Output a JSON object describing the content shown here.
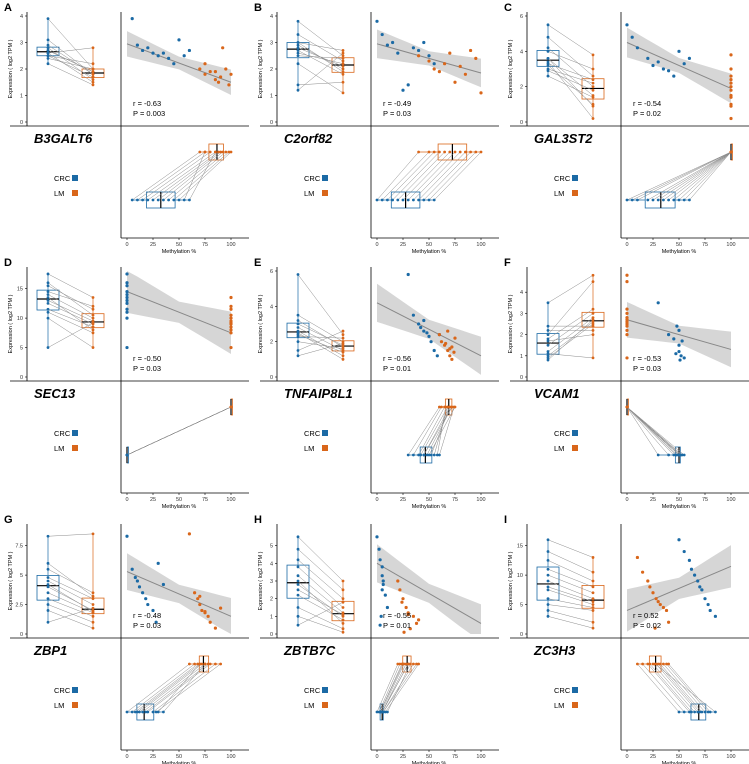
{
  "figure": {
    "groups": [
      "CRC",
      "LM"
    ],
    "colors": {
      "CRC": "#1b6aa5",
      "LM": "#d9661a",
      "line": "#8c8c8c",
      "band": "#d6d6d6"
    },
    "methylation_label": "Methylation %",
    "methylation_ticks": [
      "0",
      "25",
      "50",
      "75",
      "100"
    ]
  },
  "chart_data": [
    {
      "panel": "A",
      "gene": "B3GALT6",
      "type": "scatter",
      "expression_ylabel": "Expression ( log2 TPM )",
      "ylim": [
        0,
        4
      ],
      "yticks": [
        0,
        1,
        2,
        3,
        4
      ],
      "r_text": "r = -0.63",
      "p_text": "P = 0.003",
      "lm_start": 2.95,
      "lm_end": 1.5,
      "lm_ci": 0.4,
      "crc_methylation": [
        5,
        10,
        15,
        20,
        25,
        30,
        35,
        40,
        45,
        50,
        55,
        60
      ],
      "lm_methylation": [
        70,
        75,
        80,
        85,
        88,
        90,
        92,
        95,
        98,
        100,
        75,
        85
      ],
      "crc_expression": [
        3.9,
        2.9,
        2.7,
        2.8,
        2.6,
        2.5,
        2.6,
        2.4,
        2.2,
        3.1,
        2.5,
        2.7
      ],
      "lm_expression": [
        2.0,
        1.8,
        1.9,
        1.6,
        1.5,
        1.7,
        2.8,
        2.0,
        1.4,
        1.8,
        2.2,
        1.9
      ]
    },
    {
      "panel": "B",
      "gene": "C2orf82",
      "type": "scatter",
      "expression_ylabel": "Expression ( log2 TPM )",
      "ylim": [
        0,
        4
      ],
      "yticks": [
        0,
        1,
        2,
        3,
        4
      ],
      "r_text": "r = -0.49",
      "p_text": "P = 0.03",
      "lm_start": 2.95,
      "lm_end": 1.85,
      "lm_ci": 0.45,
      "crc_methylation": [
        0,
        5,
        10,
        15,
        20,
        25,
        30,
        35,
        40,
        45,
        50,
        55
      ],
      "lm_methylation": [
        40,
        50,
        55,
        60,
        65,
        70,
        75,
        80,
        85,
        90,
        95,
        100
      ],
      "crc_expression": [
        3.8,
        3.3,
        2.9,
        3.0,
        2.6,
        1.2,
        1.4,
        2.8,
        2.7,
        3.0,
        2.5,
        2.2
      ],
      "lm_expression": [
        2.5,
        2.3,
        2.0,
        1.9,
        2.2,
        2.6,
        1.5,
        2.1,
        1.8,
        2.7,
        2.4,
        1.1
      ]
    },
    {
      "panel": "C",
      "gene": "GAL3ST2",
      "type": "scatter",
      "expression_ylabel": "Expression ( log2 TPM )",
      "ylim": [
        0,
        6
      ],
      "yticks": [
        0,
        2,
        4,
        6
      ],
      "r_text": "r = -0.54",
      "p_text": "P = 0.02",
      "lm_start": 4.5,
      "lm_end": 1.9,
      "lm_ci": 0.7,
      "crc_methylation": [
        0,
        5,
        10,
        20,
        25,
        30,
        35,
        40,
        45,
        50,
        55,
        60
      ],
      "lm_methylation": [
        100,
        100,
        100,
        100,
        100,
        100,
        100,
        100,
        100,
        100,
        100,
        100
      ],
      "crc_expression": [
        5.5,
        4.8,
        4.2,
        3.6,
        3.2,
        3.4,
        3.0,
        2.9,
        2.6,
        4.0,
        3.3,
        3.6
      ],
      "lm_expression": [
        3.8,
        2.6,
        2.0,
        1.5,
        1.0,
        0.2,
        2.2,
        1.8,
        1.4,
        3.0,
        2.4,
        0.9
      ]
    },
    {
      "panel": "D",
      "gene": "SEC13",
      "type": "scatter",
      "expression_ylabel": "Expression ( log2 TPM )",
      "ylim": [
        0,
        18
      ],
      "yticks": [
        0,
        5,
        10,
        15
      ],
      "r_text": "r = -0.50",
      "p_text": "P = 0.03",
      "lm_start": 14.5,
      "lm_end": 7.5,
      "lm_ci": 3.0,
      "crc_methylation": [
        0,
        0,
        0,
        0,
        0,
        0,
        0,
        0,
        0,
        0,
        0,
        0
      ],
      "lm_methylation": [
        100,
        100,
        100,
        100,
        100,
        100,
        100,
        100,
        100,
        100,
        100,
        100
      ],
      "crc_expression": [
        17.5,
        15.5,
        14.0,
        13.0,
        12.5,
        11.5,
        11.0,
        10.0,
        14.5,
        16.0,
        5.0,
        13.5
      ],
      "lm_expression": [
        13.5,
        11.5,
        10.0,
        9.5,
        9.0,
        8.5,
        7.5,
        5.0,
        12.0,
        10.5,
        9.2,
        8.0
      ]
    },
    {
      "panel": "E",
      "gene": "TNFAIP8L1",
      "type": "scatter",
      "expression_ylabel": "Expression ( log2 TPM )",
      "ylim": [
        0,
        6
      ],
      "yticks": [
        0,
        2,
        4,
        6
      ],
      "r_text": "r = -0.56",
      "p_text": "P = 0.01",
      "lm_start": 4.2,
      "lm_end": 1.2,
      "lm_ci": 0.9,
      "crc_methylation": [
        30,
        35,
        40,
        42,
        45,
        48,
        50,
        52,
        55,
        58,
        60,
        45
      ],
      "lm_methylation": [
        60,
        62,
        65,
        68,
        70,
        72,
        75,
        70,
        68,
        66,
        74,
        72
      ],
      "crc_expression": [
        5.8,
        3.5,
        3.0,
        2.8,
        2.6,
        2.5,
        2.3,
        2.0,
        1.5,
        1.2,
        2.4,
        3.2
      ],
      "lm_expression": [
        2.4,
        2.0,
        1.8,
        1.5,
        1.2,
        1.0,
        2.2,
        1.6,
        2.6,
        1.9,
        1.4,
        1.7
      ]
    },
    {
      "panel": "F",
      "gene": "VCAM1",
      "type": "scatter",
      "expression_ylabel": "Expression ( log2 TPM )",
      "ylim": [
        0,
        5
      ],
      "yticks": [
        0,
        1,
        2,
        3,
        4
      ],
      "r_text": "r = -0.53",
      "p_text": "P = 0.03",
      "lm_start": 2.7,
      "lm_end": 1.3,
      "lm_ci": 0.7,
      "crc_methylation": [
        30,
        40,
        45,
        50,
        50,
        52,
        55,
        48,
        50,
        53,
        47,
        51
      ],
      "lm_methylation": [
        0,
        0,
        0,
        0,
        0,
        0,
        0,
        0,
        0,
        0,
        0,
        0
      ],
      "crc_expression": [
        3.5,
        2.0,
        1.8,
        1.5,
        1.2,
        1.0,
        0.9,
        2.4,
        2.2,
        1.7,
        1.1,
        0.8
      ],
      "lm_expression": [
        4.8,
        4.5,
        3.2,
        3.0,
        2.8,
        2.6,
        2.5,
        2.4,
        2.2,
        2.0,
        0.9,
        2.7
      ]
    },
    {
      "panel": "G",
      "gene": "ZBP1",
      "type": "scatter",
      "expression_ylabel": "Expression ( log2 TPM )",
      "ylim": [
        0,
        9
      ],
      "yticks": [
        0,
        2.5,
        5,
        7.5
      ],
      "r_text": "r = -0.48",
      "p_text": "P = 0.03",
      "lm_start": 5.3,
      "lm_end": 1.5,
      "lm_ci": 1.3,
      "crc_methylation": [
        0,
        5,
        8,
        10,
        12,
        15,
        18,
        20,
        25,
        28,
        30,
        35
      ],
      "lm_methylation": [
        60,
        65,
        68,
        70,
        72,
        75,
        78,
        80,
        85,
        90,
        70,
        75
      ],
      "crc_expression": [
        8.3,
        5.5,
        4.8,
        4.5,
        4.0,
        3.5,
        3.0,
        2.5,
        2.0,
        1.0,
        6.0,
        4.2
      ],
      "lm_expression": [
        8.5,
        3.5,
        3.0,
        2.5,
        2.0,
        1.8,
        1.5,
        1.0,
        0.5,
        2.2,
        3.2,
        1.9
      ]
    },
    {
      "panel": "H",
      "gene": "ZBTB7C",
      "type": "scatter",
      "expression_ylabel": "Expression ( log2 TPM )",
      "ylim": [
        0,
        6
      ],
      "yticks": [
        0,
        1,
        2,
        3,
        4,
        5
      ],
      "r_text": "r = -0.55",
      "p_text": "P = 0.01",
      "lm_start": 4.0,
      "lm_end": 0.6,
      "lm_ci": 0.9,
      "crc_methylation": [
        0,
        2,
        3,
        5,
        5,
        6,
        8,
        10,
        4,
        3,
        6,
        5
      ],
      "lm_methylation": [
        20,
        22,
        25,
        28,
        30,
        35,
        40,
        32,
        26,
        24,
        38,
        30
      ],
      "crc_expression": [
        5.5,
        4.8,
        4.2,
        3.8,
        3.3,
        2.8,
        2.2,
        1.5,
        1.0,
        0.5,
        3.0,
        2.5
      ],
      "lm_expression": [
        3.0,
        2.5,
        2.0,
        1.5,
        1.2,
        1.0,
        0.8,
        0.3,
        0.1,
        1.8,
        0.6,
        1.1
      ]
    },
    {
      "panel": "I",
      "gene": "ZC3H3",
      "type": "scatter",
      "expression_ylabel": "Expression ( log2 TPM )",
      "ylim": [
        0,
        18
      ],
      "yticks": [
        0,
        5,
        10,
        15
      ],
      "r_text": "r = 0.52",
      "p_text": "P = 0.02",
      "lm_start": 4.0,
      "lm_end": 11.5,
      "lm_ci": 3.0,
      "crc_methylation": [
        50,
        55,
        60,
        62,
        65,
        68,
        70,
        72,
        75,
        78,
        80,
        85
      ],
      "lm_methylation": [
        10,
        15,
        20,
        22,
        25,
        28,
        30,
        32,
        35,
        38,
        40,
        27
      ],
      "crc_expression": [
        16.0,
        14.0,
        12.5,
        11.0,
        10.0,
        9.0,
        8.0,
        7.5,
        6.0,
        5.0,
        4.0,
        3.0
      ],
      "lm_expression": [
        13.0,
        10.5,
        9.0,
        8.0,
        7.0,
        6.0,
        5.5,
        5.0,
        4.5,
        4.0,
        2.0,
        1.0
      ]
    }
  ]
}
